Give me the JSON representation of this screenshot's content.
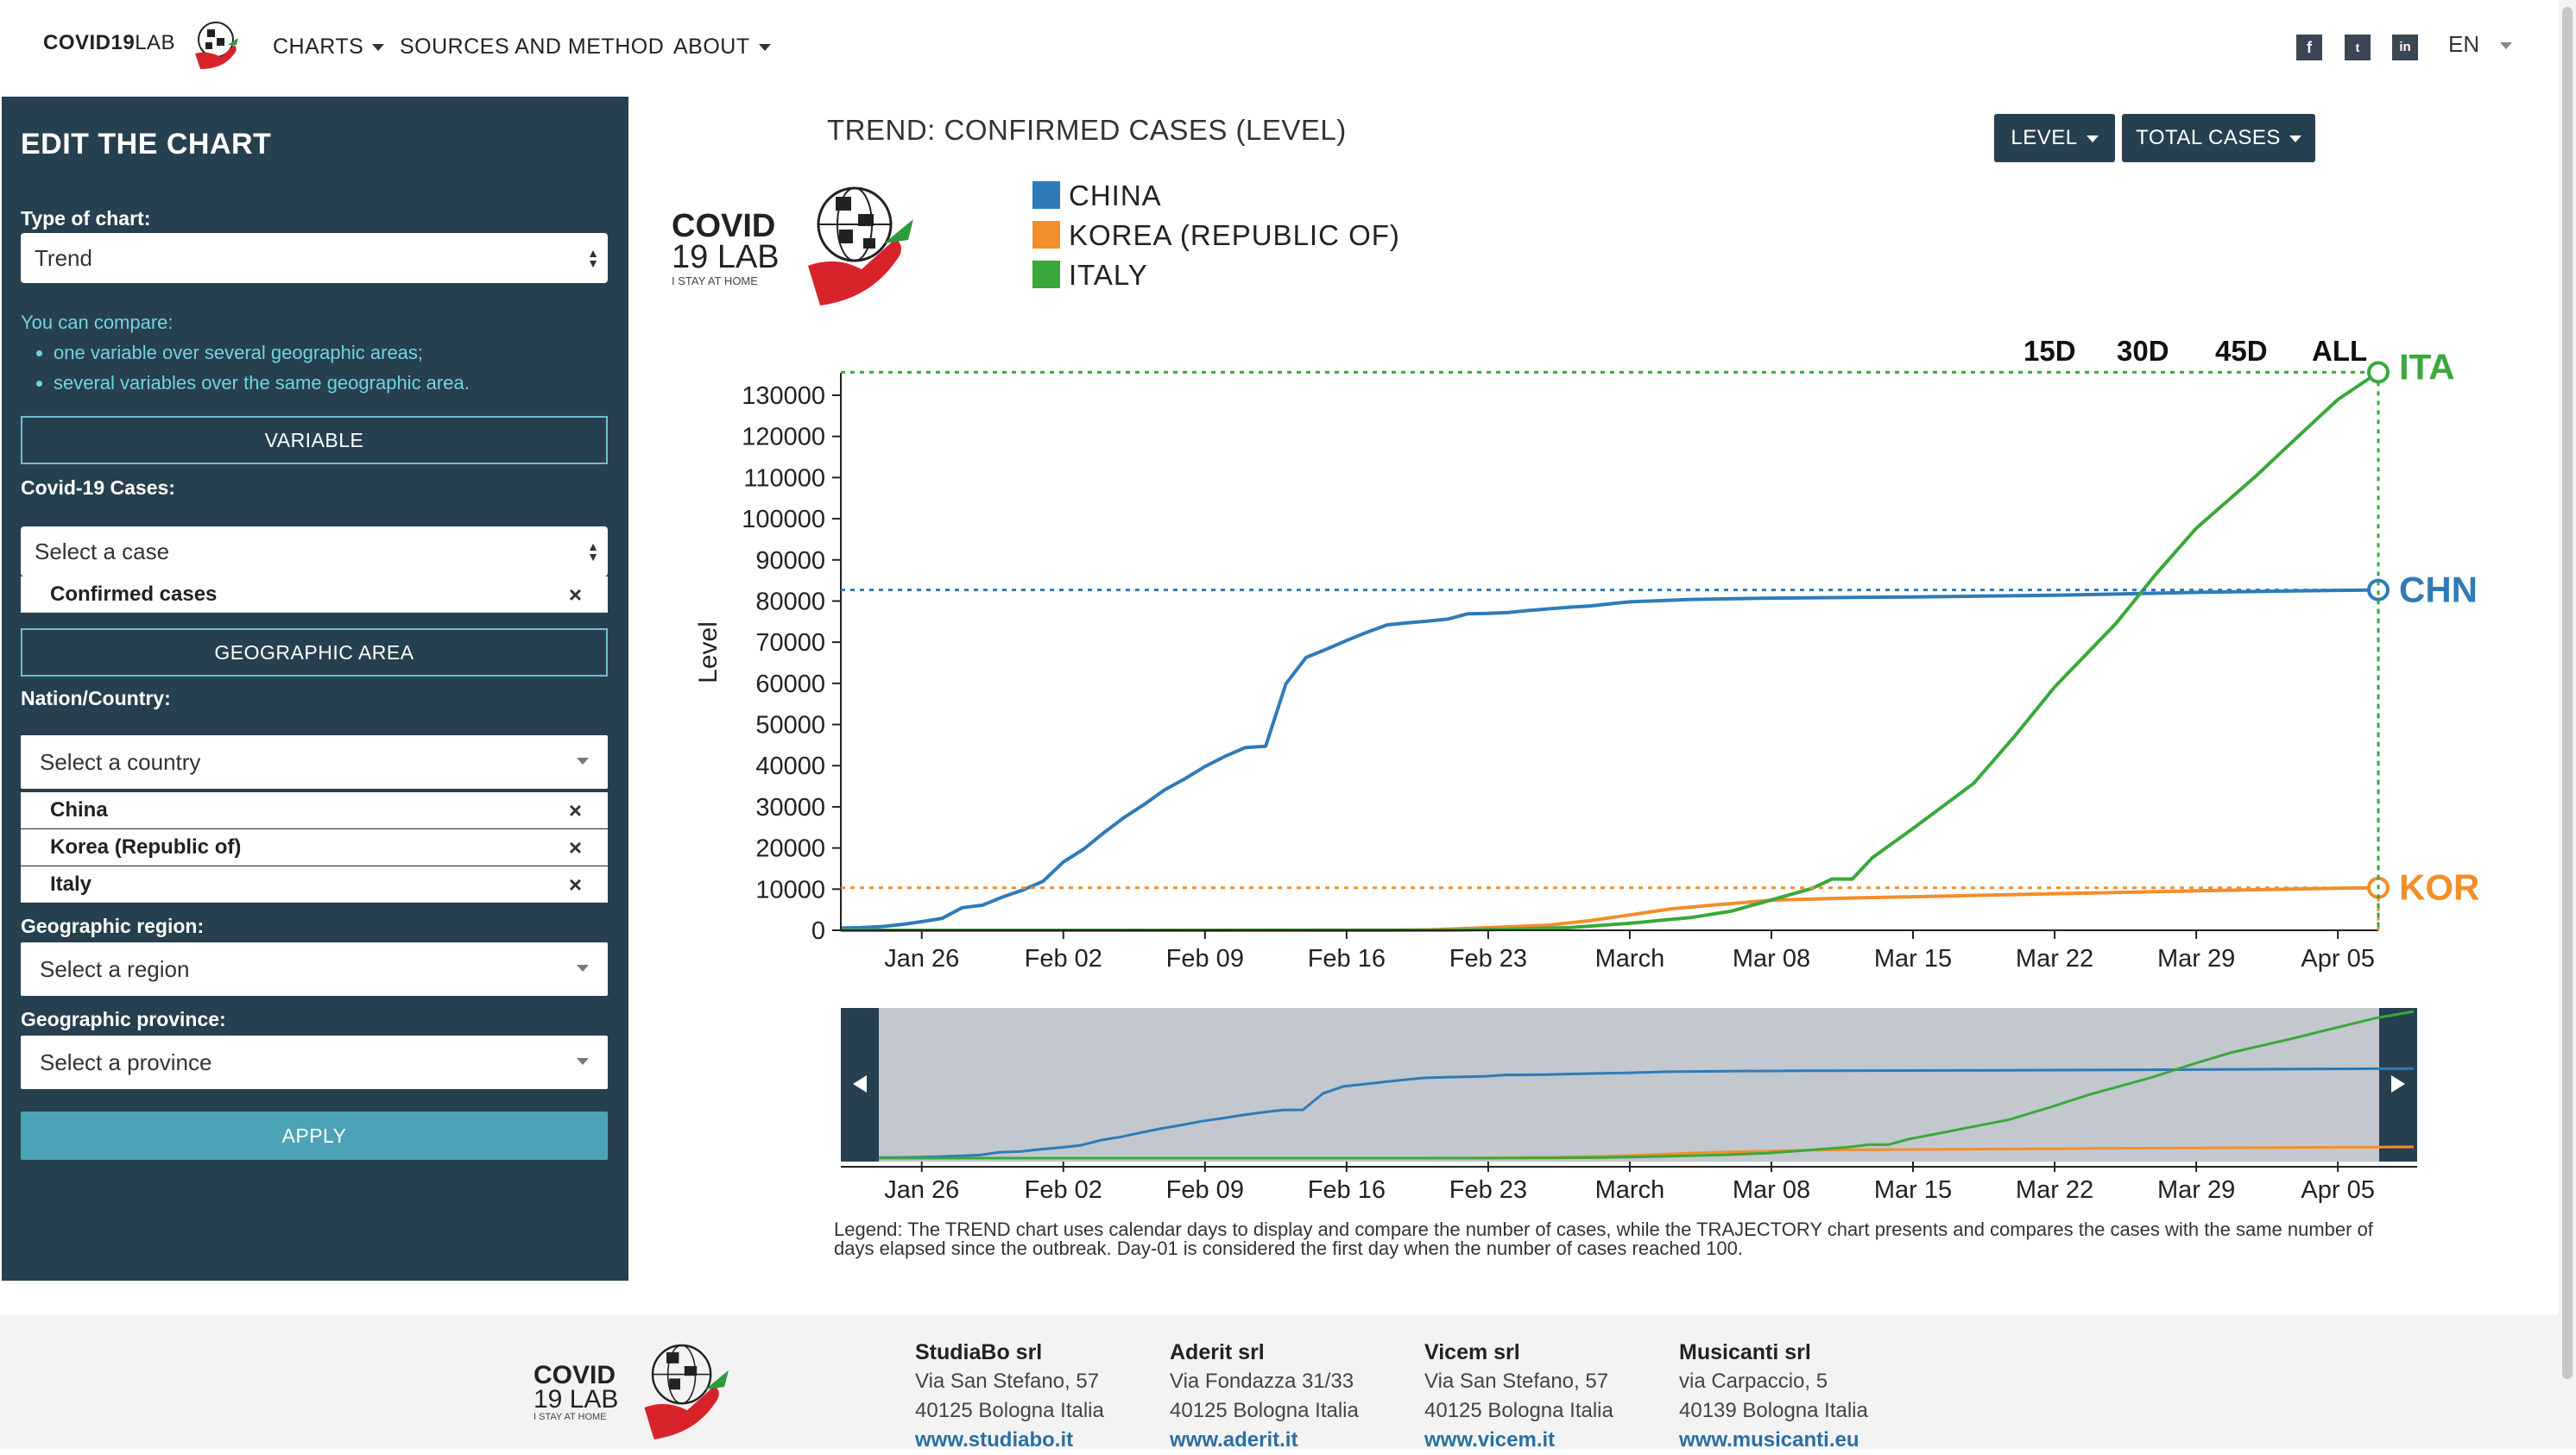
{
  "navbar": {
    "brand_bold": "COVID19",
    "brand_thin": "LAB",
    "items": [
      {
        "label": "CHARTS"
      },
      {
        "label": "SOURCES AND METHOD"
      },
      {
        "label": "ABOUT"
      }
    ],
    "social": [
      "f",
      "t",
      "in"
    ],
    "language": "EN"
  },
  "sidebar": {
    "title": "EDIT THE CHART",
    "type_label": "Type of chart:",
    "type_value": "Trend",
    "help_intro": "You can compare:",
    "help_items": [
      "one variable over several geographic areas;",
      "several variables over the same geographic area."
    ],
    "variable_button": "VARIABLE",
    "cases_label": "Covid-19 Cases:",
    "cases_placeholder": "Select a case",
    "cases_selected": [
      "Confirmed cases"
    ],
    "geo_button": "GEOGRAPHIC AREA",
    "country_label": "Nation/Country:",
    "country_placeholder": "Select a country",
    "countries_selected": [
      "China",
      "Korea (Republic of)",
      "Italy"
    ],
    "region_label": "Geographic region:",
    "region_placeholder": "Select a region",
    "province_label": "Geographic province:",
    "province_placeholder": "Select a province",
    "apply_button": "APPLY"
  },
  "main": {
    "chart_title": "TREND: CONFIRMED CASES (LEVEL)",
    "level_button": "LEVEL",
    "total_button": "TOTAL CASES",
    "logo_line1": "COVID",
    "logo_line2": "19 LAB",
    "logo_tagline": "I STAY AT HOME",
    "range_buttons": [
      "15D",
      "30D",
      "45D",
      "ALL"
    ],
    "legend_note": "Legend: The TREND chart uses calendar days to display and compare the number of cases, while the TRAJECTORY chart presents and compares the cases with the same number of days elapsed since the outbreak. Day-01 is considered the first day when the number of cases reached 100."
  },
  "chart_data": {
    "type": "line",
    "ylabel": "Level",
    "xlabel": "",
    "ylim": [
      0,
      140000
    ],
    "yticks": [
      0,
      10000,
      20000,
      30000,
      40000,
      50000,
      60000,
      70000,
      80000,
      90000,
      100000,
      110000,
      120000,
      130000
    ],
    "x_ticks": [
      "Jan 26",
      "Feb 02",
      "Feb 09",
      "Feb 16",
      "Feb 23",
      "March",
      "Mar 08",
      "Mar 15",
      "Mar 22",
      "Mar 29",
      "Apr 05"
    ],
    "x_tick_dates": [
      "2020-01-26",
      "2020-02-02",
      "2020-02-09",
      "2020-02-16",
      "2020-02-23",
      "2020-03-01",
      "2020-03-08",
      "2020-03-15",
      "2020-03-22",
      "2020-03-29",
      "2020-04-05"
    ],
    "x_start": "2020-01-22",
    "x_end": "2020-04-07",
    "legend_position": "top-left",
    "series": [
      {
        "name": "CHINA",
        "code": "CHN",
        "color": "#2f7bb8",
        "points": [
          [
            "2020-01-22",
            550
          ],
          [
            "2020-01-23",
            650
          ],
          [
            "2020-01-24",
            900
          ],
          [
            "2020-01-25",
            1400
          ],
          [
            "2020-01-26",
            2100
          ],
          [
            "2020-01-27",
            2900
          ],
          [
            "2020-01-28",
            5500
          ],
          [
            "2020-01-29",
            6100
          ],
          [
            "2020-01-30",
            8100
          ],
          [
            "2020-01-31",
            9800
          ],
          [
            "2020-02-01",
            11900
          ],
          [
            "2020-02-02",
            16600
          ],
          [
            "2020-02-03",
            19700
          ],
          [
            "2020-02-04",
            23700
          ],
          [
            "2020-02-05",
            27400
          ],
          [
            "2020-02-06",
            30600
          ],
          [
            "2020-02-07",
            34100
          ],
          [
            "2020-02-08",
            36800
          ],
          [
            "2020-02-09",
            39800
          ],
          [
            "2020-02-10",
            42300
          ],
          [
            "2020-02-11",
            44400
          ],
          [
            "2020-02-12",
            44700
          ],
          [
            "2020-02-13",
            59900
          ],
          [
            "2020-02-14",
            66300
          ],
          [
            "2020-02-15",
            68300
          ],
          [
            "2020-02-16",
            70400
          ],
          [
            "2020-02-17",
            72400
          ],
          [
            "2020-02-18",
            74200
          ],
          [
            "2020-02-19",
            74700
          ],
          [
            "2020-02-20",
            75100
          ],
          [
            "2020-02-21",
            75600
          ],
          [
            "2020-02-22",
            76900
          ],
          [
            "2020-02-23",
            77000
          ],
          [
            "2020-02-24",
            77200
          ],
          [
            "2020-02-25",
            77700
          ],
          [
            "2020-02-26",
            78100
          ],
          [
            "2020-02-27",
            78500
          ],
          [
            "2020-02-28",
            78800
          ],
          [
            "2020-02-29",
            79300
          ],
          [
            "2020-03-01",
            79800
          ],
          [
            "2020-03-04",
            80400
          ],
          [
            "2020-03-08",
            80700
          ],
          [
            "2020-03-15",
            81000
          ],
          [
            "2020-03-22",
            81400
          ],
          [
            "2020-03-29",
            82100
          ],
          [
            "2020-04-05",
            82600
          ],
          [
            "2020-04-07",
            82700
          ]
        ]
      },
      {
        "name": "KOREA (REPUBLIC OF)",
        "code": "KOR",
        "color": "#f28e2b",
        "points": [
          [
            "2020-01-22",
            0
          ],
          [
            "2020-02-18",
            31
          ],
          [
            "2020-02-20",
            104
          ],
          [
            "2020-02-22",
            433
          ],
          [
            "2020-02-24",
            833
          ],
          [
            "2020-02-26",
            1261
          ],
          [
            "2020-02-28",
            2337
          ],
          [
            "2020-03-01",
            3736
          ],
          [
            "2020-03-03",
            5186
          ],
          [
            "2020-03-05",
            6088
          ],
          [
            "2020-03-08",
            7314
          ],
          [
            "2020-03-12",
            7869
          ],
          [
            "2020-03-15",
            8162
          ],
          [
            "2020-03-22",
            8897
          ],
          [
            "2020-03-29",
            9583
          ],
          [
            "2020-04-05",
            10237
          ],
          [
            "2020-04-07",
            10331
          ]
        ]
      },
      {
        "name": "ITALY",
        "code": "ITA",
        "color": "#3aa83a",
        "points": [
          [
            "2020-01-22",
            0
          ],
          [
            "2020-02-21",
            20
          ],
          [
            "2020-02-24",
            229
          ],
          [
            "2020-02-27",
            655
          ],
          [
            "2020-03-01",
            1694
          ],
          [
            "2020-03-04",
            3089
          ],
          [
            "2020-03-06",
            4636
          ],
          [
            "2020-03-08",
            7375
          ],
          [
            "2020-03-10",
            10149
          ],
          [
            "2020-03-11",
            12462
          ],
          [
            "2020-03-12",
            12462
          ],
          [
            "2020-03-13",
            17660
          ],
          [
            "2020-03-15",
            24747
          ],
          [
            "2020-03-18",
            35713
          ],
          [
            "2020-03-20",
            47021
          ],
          [
            "2020-03-22",
            59138
          ],
          [
            "2020-03-25",
            74386
          ],
          [
            "2020-03-27",
            86498
          ],
          [
            "2020-03-29",
            97689
          ],
          [
            "2020-04-01",
            110574
          ],
          [
            "2020-04-03",
            119827
          ],
          [
            "2020-04-05",
            128948
          ],
          [
            "2020-04-07",
            135586
          ]
        ]
      }
    ]
  },
  "footer": {
    "logo_line1": "COVID",
    "logo_line2": "19 LAB",
    "logo_tagline": "I STAY AT HOME",
    "companies": [
      {
        "name": "StudiaBo srl",
        "address1": "Via San Stefano, 57",
        "address2": "40125 Bologna Italia",
        "url": "www.studiabo.it"
      },
      {
        "name": "Aderit srl",
        "address1": "Via Fondazza 31/33",
        "address2": "40125 Bologna Italia",
        "url": "www.aderit.it"
      },
      {
        "name": "Vicem srl",
        "address1": "Via San Stefano, 57",
        "address2": "40125 Bologna Italia",
        "url": "www.vicem.it"
      },
      {
        "name": "Musicanti srl",
        "address1": "via Carpaccio, 5",
        "address2": "40139 Bologna Italia",
        "url": "www.musicanti.eu"
      }
    ]
  },
  "colors": {
    "sidebar_bg": "#27404f",
    "accent": "#4da3b6",
    "help_text": "#6fd4e0"
  }
}
